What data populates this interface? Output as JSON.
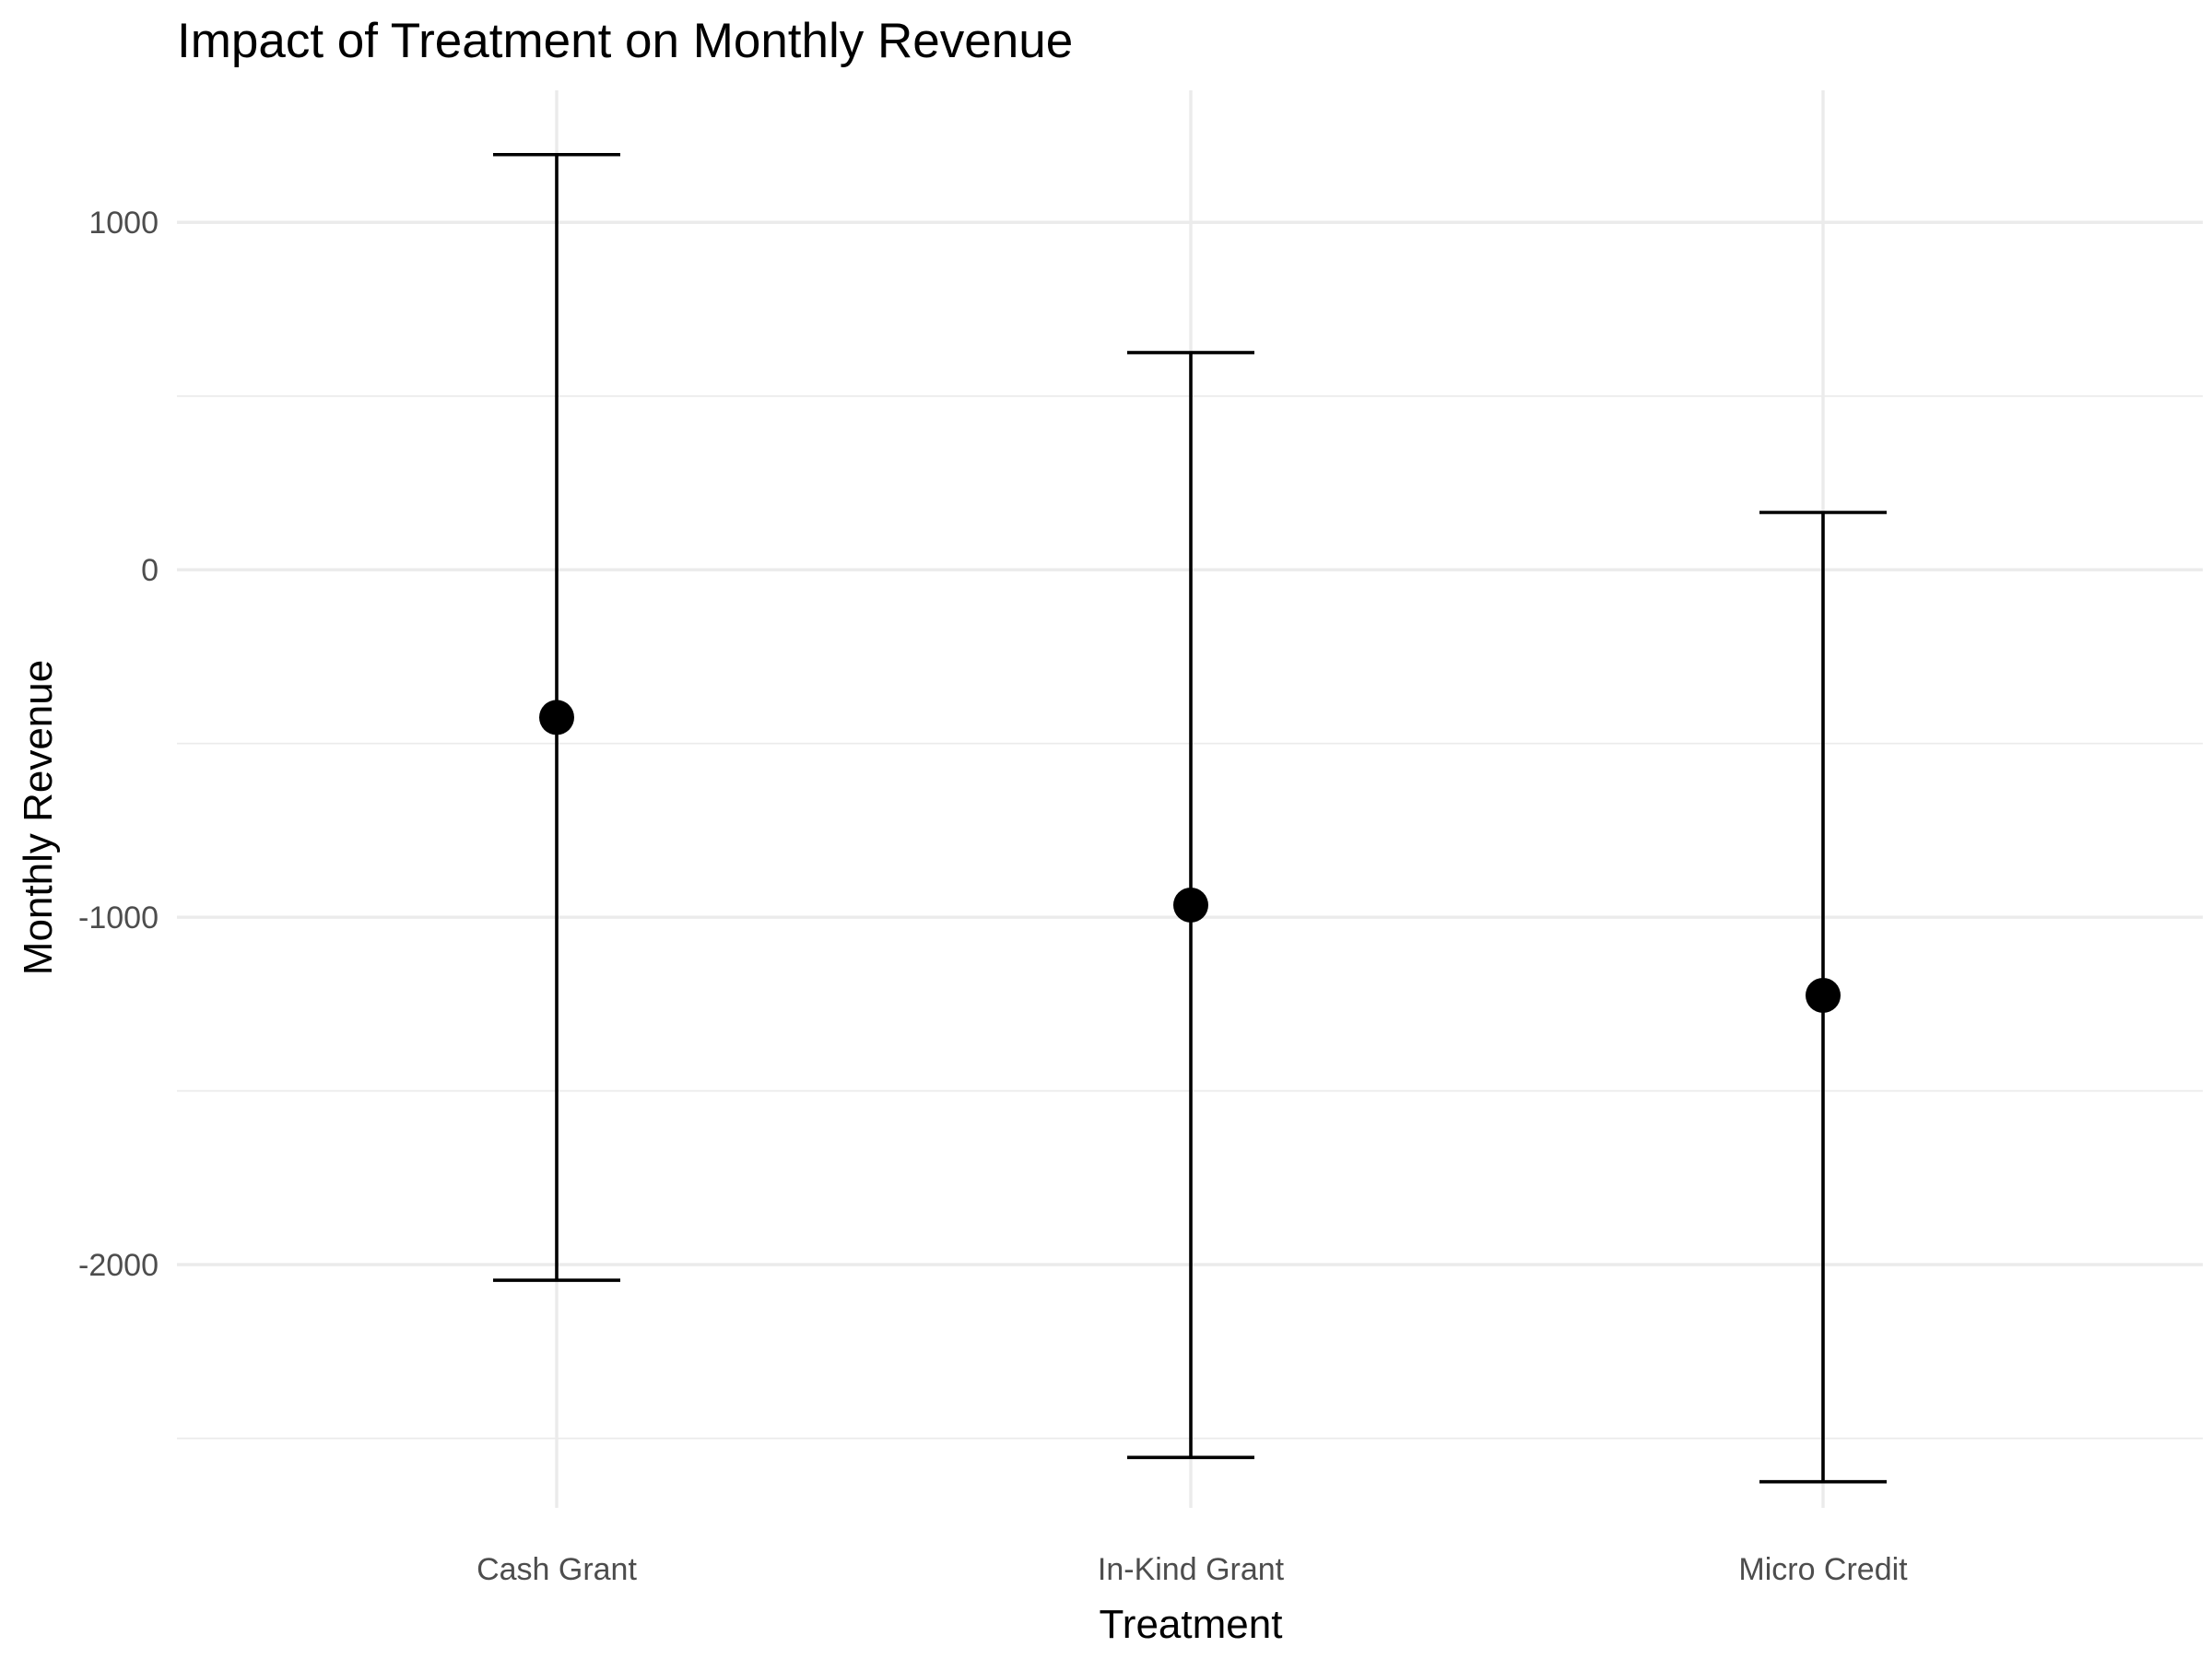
{
  "chart_data": {
    "type": "scatter",
    "title": "Impact of Treatment on Monthly Revenue",
    "xlabel": "Treatment",
    "ylabel": "Monthly Revenue",
    "categories": [
      "Cash Grant",
      "In-Kind Grant",
      "Micro Credit"
    ],
    "series": [
      {
        "values": [
          -425,
          -965,
          -1225
        ],
        "error_lower": [
          -2045,
          -2555,
          -2625
        ],
        "error_upper": [
          1195,
          625,
          165
        ]
      }
    ],
    "ylim": [
      -2700,
      1380
    ],
    "yticks": [
      1000,
      0,
      -1000,
      -2000
    ],
    "ytick_labels": [
      "1000",
      "0",
      "-1000",
      "-2000"
    ],
    "grid": true,
    "legend": "none",
    "colors": {
      "points": "#000000",
      "errorbars": "#000000",
      "grid": "#ebebeb",
      "tick_labels": "#4d4d4d",
      "background": "#ffffff"
    }
  }
}
